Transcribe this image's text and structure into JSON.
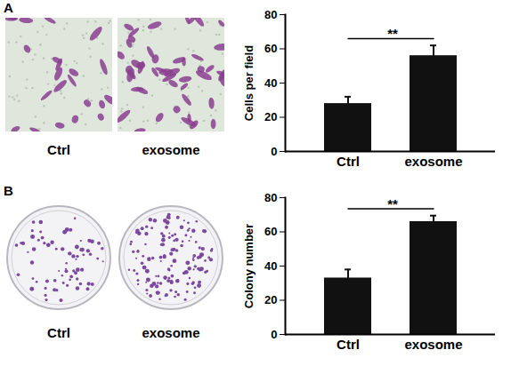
{
  "chart_data": [
    {
      "type": "bar",
      "panel": "A",
      "image_labels": [
        "Ctrl",
        "exosome"
      ],
      "y_label": "Cells per field",
      "categories": [
        "Ctrl",
        "exosome"
      ],
      "values": [
        28,
        56
      ],
      "errors": [
        4,
        6
      ],
      "color": "#111111",
      "ylim": [
        0,
        80
      ],
      "yticks": [
        0,
        20,
        40,
        60,
        80
      ],
      "annotations": [
        {
          "text": "**",
          "from": "Ctrl",
          "to": "exosome"
        }
      ]
    },
    {
      "type": "bar",
      "panel": "B",
      "image_labels": [
        "Ctrl",
        "exosome"
      ],
      "y_label": "Colony number",
      "categories": [
        "Ctrl",
        "exosome"
      ],
      "values": [
        33,
        66
      ],
      "errors": [
        5,
        3.5
      ],
      "color": "#111111",
      "ylim": [
        0,
        80
      ],
      "yticks": [
        0,
        20,
        40,
        60,
        80
      ],
      "annotations": [
        {
          "text": "**",
          "from": "Ctrl",
          "to": "exosome"
        }
      ]
    }
  ]
}
